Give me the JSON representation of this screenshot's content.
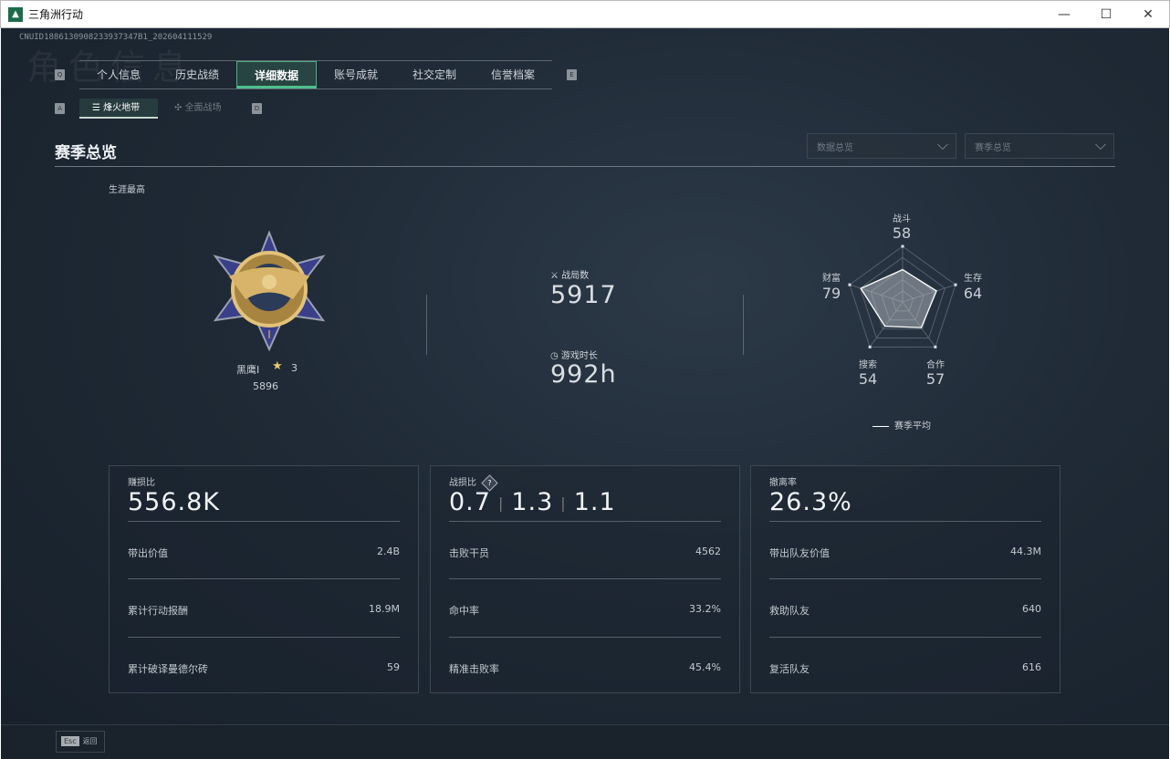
{
  "window": {
    "title": "三角洲行动",
    "minimize": "—",
    "maximize": "☐",
    "close": "✕"
  },
  "uid": "CNUID1886130908233937347B1_202604111529",
  "ghost_heading": "角色信息",
  "tabs": [
    {
      "label": "个人信息"
    },
    {
      "label": "历史战绩"
    },
    {
      "label": "详细数据",
      "active": true
    },
    {
      "label": "账号成就"
    },
    {
      "label": "社交定制"
    },
    {
      "label": "信誉档案"
    }
  ],
  "tab_keys": {
    "prev": "Q",
    "next": "E",
    "sub_prev": "A",
    "sub_next": "D"
  },
  "subtabs": [
    {
      "label": "烽火地带",
      "active": true
    },
    {
      "label": "全面战场"
    }
  ],
  "section_title": "赛季总览",
  "dropdowns": [
    {
      "value": "数据总览"
    },
    {
      "value": "赛季总览"
    }
  ],
  "career_label": "生涯最高",
  "rank": {
    "name": "黑鹰I",
    "stars": "3",
    "score": "5896"
  },
  "matches": {
    "label": "战局数",
    "value": "5917"
  },
  "playtime": {
    "label": "游戏时长",
    "value": "992h"
  },
  "radar": {
    "axes": [
      {
        "label": "战斗",
        "value": 58
      },
      {
        "label": "生存",
        "value": 64
      },
      {
        "label": "合作",
        "value": 57
      },
      {
        "label": "搜索",
        "value": 54
      },
      {
        "label": "财富",
        "value": 79
      }
    ],
    "max": 100,
    "legend": "赛季平均",
    "color": "#ffffff"
  },
  "cards": [
    {
      "title": "赚损比",
      "value": "556.8K",
      "rows": [
        {
          "k": "带出价值",
          "v": "2.4B"
        },
        {
          "k": "累计行动报酬",
          "v": "18.9M"
        },
        {
          "k": "累计破译曼德尔砖",
          "v": "59"
        }
      ]
    },
    {
      "title": "战损比",
      "values": [
        "0.7",
        "1.3",
        "1.1"
      ],
      "help": "?",
      "rows": [
        {
          "k": "击败干员",
          "v": "4562"
        },
        {
          "k": "命中率",
          "v": "33.2%"
        },
        {
          "k": "精准击败率",
          "v": "45.4%"
        }
      ]
    },
    {
      "title": "撤离率",
      "value": "26.3%",
      "rows": [
        {
          "k": "带出队友价值",
          "v": "44.3M"
        },
        {
          "k": "救助队友",
          "v": "640"
        },
        {
          "k": "复活队友",
          "v": "616"
        }
      ]
    }
  ],
  "footer": {
    "key": "Esc",
    "label": "返回"
  }
}
